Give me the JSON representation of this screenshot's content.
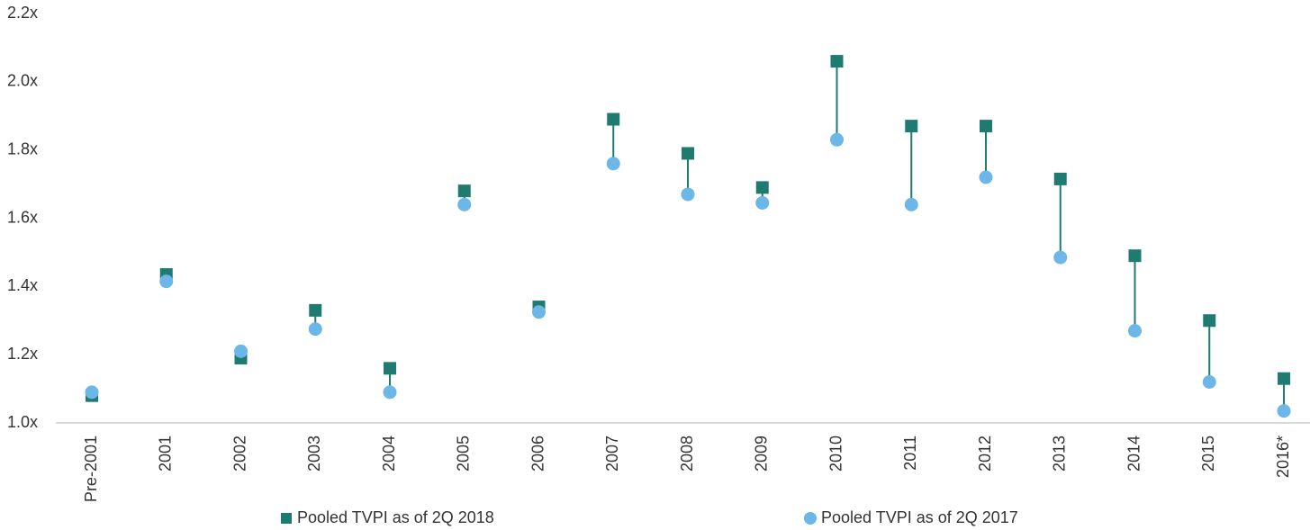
{
  "chart_data": {
    "type": "dumbbell",
    "categories": [
      "Pre-2001",
      "2001",
      "2002",
      "2003",
      "2004",
      "2005",
      "2006",
      "2007",
      "2008",
      "2009",
      "2010",
      "2011",
      "2012",
      "2013",
      "2014",
      "2015",
      "2016*"
    ],
    "series": [
      {
        "name": "Pooled TVPI as of 2Q 2018",
        "color": "#1f7a70",
        "marker": "square",
        "values": [
          1.08,
          1.435,
          1.19,
          1.33,
          1.16,
          1.68,
          1.34,
          1.89,
          1.79,
          1.69,
          2.06,
          1.87,
          1.87,
          1.715,
          1.49,
          1.3,
          1.13
        ]
      },
      {
        "name": "Pooled TVPI as of 2Q 2017",
        "color": "#6cb6e8",
        "marker": "circle",
        "values": [
          1.09,
          1.415,
          1.21,
          1.275,
          1.09,
          1.64,
          1.325,
          1.76,
          1.67,
          1.645,
          1.83,
          1.64,
          1.72,
          1.485,
          1.27,
          1.12,
          1.035
        ]
      }
    ],
    "connector_color": "#1f7a70",
    "ylim": [
      1.0,
      2.2
    ],
    "yticks": [
      {
        "value": 1.0,
        "label": "1.0x"
      },
      {
        "value": 1.2,
        "label": "1.2x"
      },
      {
        "value": 1.4,
        "label": "1.4x"
      },
      {
        "value": 1.6,
        "label": "1.6x"
      },
      {
        "value": 1.8,
        "label": "1.8x"
      },
      {
        "value": 2.0,
        "label": "2.0x"
      },
      {
        "value": 2.2,
        "label": "2.2x"
      }
    ],
    "grid": false
  }
}
